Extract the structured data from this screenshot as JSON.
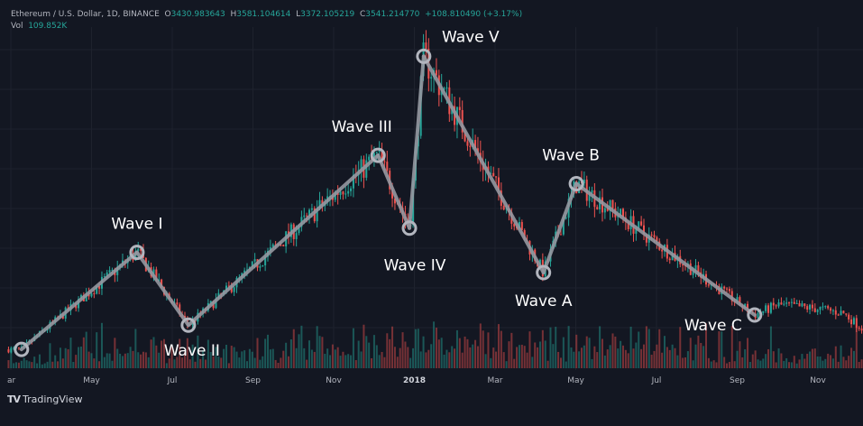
{
  "header": {
    "symbol": "Ethereum / U.S. Dollar, 1D, BINANCE",
    "open_key": "O",
    "open": "3430.983643",
    "high_key": "H",
    "high": "3581.104614",
    "low_key": "L",
    "low": "3372.105219",
    "close_key": "C",
    "close": "3541.214770",
    "change": "+108.810490 (+3.17%)",
    "vol_key": "Vol",
    "vol": "109.852K"
  },
  "colors": {
    "background": "#131722",
    "grid": "#1e222d",
    "up": "#26a69a",
    "down": "#ef5350",
    "wave_line": "#9598a1",
    "text": "#b2b5be"
  },
  "chart_data": {
    "type": "candlestick",
    "x_axis_ticks": [
      "ar",
      "May",
      "Jul",
      "Sep",
      "Nov",
      "2018",
      "Mar",
      "May",
      "Jul",
      "Sep",
      "Nov"
    ],
    "bold_tick": "2018",
    "waves": [
      {
        "label": "",
        "x": 0.5,
        "y": 0.0
      },
      {
        "label": "Wave I",
        "x": 4.55,
        "y": 0.48
      },
      {
        "label": "Wave II",
        "x": 6.35,
        "y": 0.12
      },
      {
        "label": "Wave III",
        "x": 13.0,
        "y": 0.96
      },
      {
        "label": "Wave IV",
        "x": 14.1,
        "y": 0.6
      },
      {
        "label": "Wave V",
        "x": 14.6,
        "y": 1.45
      },
      {
        "label": "Wave A",
        "x": 18.8,
        "y": 0.38
      },
      {
        "label": "Wave B",
        "x": 19.95,
        "y": 0.82
      },
      {
        "label": "Wave C",
        "x": 26.2,
        "y": 0.17
      }
    ],
    "tail": [
      {
        "x": 27.0,
        "y": 0.22
      },
      {
        "x": 28.5,
        "y": 0.2
      },
      {
        "x": 29.3,
        "y": 0.18
      },
      {
        "x": 30.0,
        "y": 0.1
      }
    ],
    "x_range": [
      0,
      30
    ],
    "y_range": [
      -0.08,
      1.55
    ]
  },
  "brand": {
    "name": "TradingView",
    "logo": "TV"
  }
}
